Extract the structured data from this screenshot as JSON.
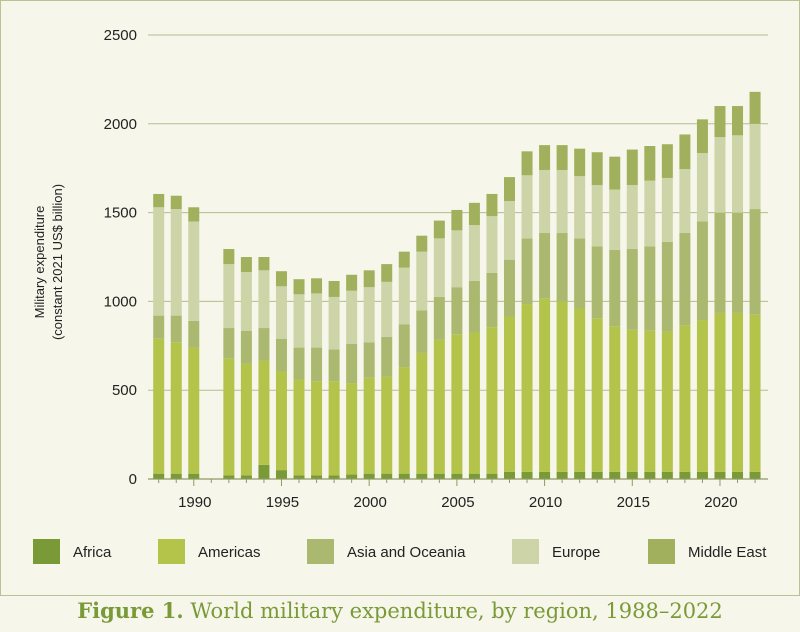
{
  "figure": {
    "number_label": "Figure 1.",
    "title": "World military expenditure, by region, 1988–2022"
  },
  "chart_data": {
    "type": "bar",
    "stacked": true,
    "ylabel_line1": "Military expenditure",
    "ylabel_line2": "(constant 2021 US$ billion)",
    "ylim": [
      0,
      2500
    ],
    "yticks": [
      0,
      500,
      1000,
      1500,
      2000,
      2500
    ],
    "xticks": [
      1990,
      1995,
      2000,
      2005,
      2010,
      2015,
      2020
    ],
    "grid": true,
    "legend_position": "bottom",
    "categories": [
      1988,
      1989,
      1990,
      1991,
      1992,
      1993,
      1994,
      1995,
      1996,
      1997,
      1998,
      1999,
      2000,
      2001,
      2002,
      2003,
      2004,
      2005,
      2006,
      2007,
      2008,
      2009,
      2010,
      2011,
      2012,
      2013,
      2014,
      2015,
      2016,
      2017,
      2018,
      2019,
      2020,
      2021,
      2022
    ],
    "series": [
      {
        "name": "Africa",
        "color": "#7a9a38",
        "values": [
          30,
          30,
          30,
          null,
          20,
          20,
          80,
          50,
          20,
          20,
          20,
          25,
          30,
          30,
          30,
          30,
          30,
          30,
          30,
          30,
          40,
          40,
          40,
          40,
          40,
          40,
          40,
          40,
          40,
          40,
          40,
          40,
          40,
          40,
          40
        ]
      },
      {
        "name": "Americas",
        "color": "#b4c34a",
        "values": [
          760,
          740,
          710,
          null,
          660,
          630,
          585,
          555,
          540,
          530,
          530,
          515,
          540,
          545,
          600,
          680,
          755,
          785,
          795,
          825,
          875,
          945,
          975,
          960,
          920,
          865,
          820,
          800,
          795,
          790,
          825,
          855,
          895,
          895,
          885
        ]
      },
      {
        "name": "Asia and Oceania",
        "color": "#abb970",
        "values": [
          130,
          150,
          150,
          null,
          170,
          185,
          185,
          185,
          180,
          190,
          180,
          220,
          200,
          225,
          240,
          240,
          240,
          265,
          290,
          305,
          320,
          370,
          370,
          385,
          395,
          405,
          430,
          455,
          475,
          505,
          520,
          555,
          565,
          565,
          595
        ]
      },
      {
        "name": "Europe",
        "color": "#cdd4a8",
        "values": [
          610,
          600,
          560,
          null,
          360,
          330,
          325,
          295,
          300,
          305,
          295,
          300,
          310,
          310,
          320,
          330,
          330,
          320,
          315,
          320,
          330,
          355,
          355,
          355,
          350,
          345,
          340,
          360,
          370,
          360,
          360,
          385,
          425,
          435,
          480
        ]
      },
      {
        "name": "Middle East",
        "color": "#a1b05c",
        "values": [
          75,
          75,
          80,
          null,
          85,
          85,
          75,
          85,
          85,
          85,
          90,
          90,
          95,
          100,
          90,
          90,
          100,
          115,
          125,
          125,
          135,
          135,
          140,
          140,
          155,
          185,
          185,
          200,
          195,
          190,
          195,
          190,
          175,
          165,
          180
        ]
      }
    ]
  }
}
